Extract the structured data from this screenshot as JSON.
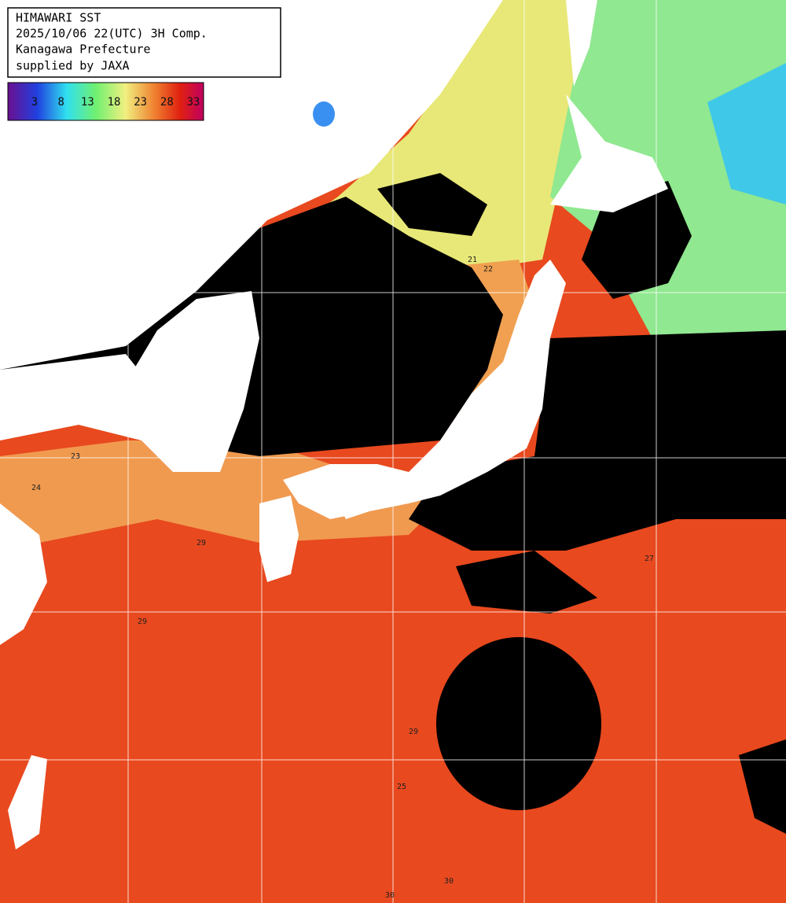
{
  "header": {
    "lines": [
      "HIMAWARI SST",
      "2025/10/06 22(UTC) 3H Comp.",
      "Kanagawa Prefecture",
      "supplied by JAXA"
    ]
  },
  "colorbar": {
    "labels": [
      3,
      8,
      13,
      18,
      23,
      28,
      33
    ]
  },
  "contour_labels": [
    21,
    22,
    23,
    24,
    29,
    29,
    29,
    30,
    30,
    27,
    25
  ]
}
